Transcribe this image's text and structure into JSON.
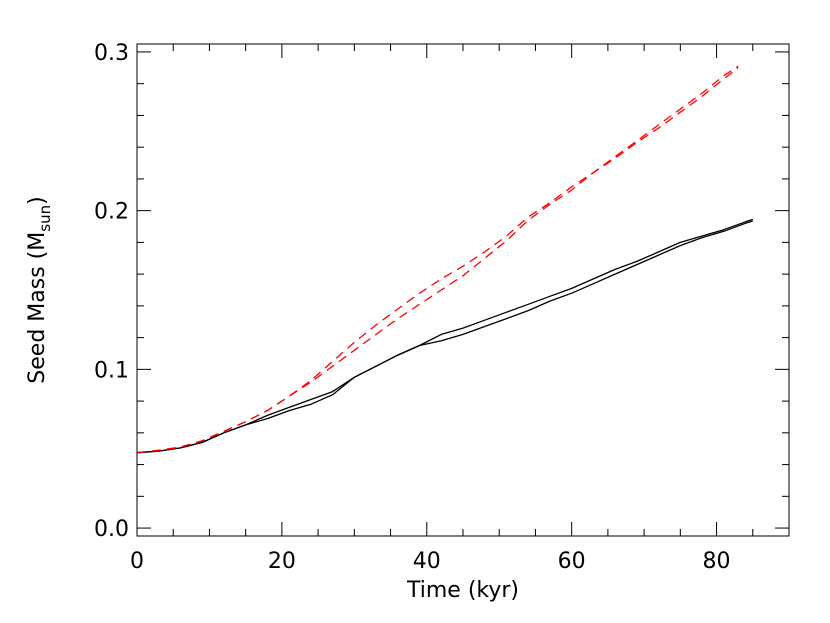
{
  "chart_data": {
    "type": "line",
    "title": "",
    "xlabel": "Time (kyr)",
    "ylabel": {
      "main": "Seed Mass (M",
      "sub": "sun",
      "close": ")"
    },
    "xlim": [
      0,
      90
    ],
    "ylim": [
      -0.005,
      0.305
    ],
    "xticks": [
      0,
      20,
      40,
      60,
      80
    ],
    "xtick_labels": [
      "0",
      "20",
      "40",
      "60",
      "80"
    ],
    "yticks": [
      0.0,
      0.1,
      0.2,
      0.3
    ],
    "ytick_labels": [
      "0.0",
      "0.1",
      "0.2",
      "0.3"
    ],
    "x_minor_step": 5,
    "y_minor_step": 0.02,
    "grid": false,
    "legend": false,
    "series": [
      {
        "color": "#000000",
        "dash": "solid",
        "x": [
          0,
          3,
          6,
          9,
          12,
          15,
          18,
          21,
          24,
          27,
          30,
          33,
          36,
          39,
          42,
          45,
          48,
          51,
          54,
          57,
          60,
          63,
          66,
          69,
          72,
          75,
          78,
          81,
          84,
          85
        ],
        "y": [
          0.0475,
          0.0485,
          0.0505,
          0.054,
          0.06,
          0.065,
          0.071,
          0.076,
          0.081,
          0.086,
          0.095,
          0.102,
          0.109,
          0.115,
          0.122,
          0.126,
          0.131,
          0.136,
          0.141,
          0.146,
          0.151,
          0.157,
          0.163,
          0.168,
          0.174,
          0.18,
          0.184,
          0.188,
          0.193,
          0.1945
        ]
      },
      {
        "color": "#000000",
        "dash": "solid",
        "x": [
          0,
          3,
          6,
          9,
          12,
          15,
          18,
          21,
          24,
          27,
          30,
          33,
          36,
          39,
          42,
          45,
          48,
          51,
          54,
          57,
          60,
          63,
          66,
          69,
          72,
          75,
          78,
          81,
          84,
          85
        ],
        "y": [
          0.0475,
          0.0485,
          0.0505,
          0.054,
          0.06,
          0.065,
          0.069,
          0.074,
          0.078,
          0.084,
          0.095,
          0.102,
          0.109,
          0.115,
          0.118,
          0.122,
          0.127,
          0.132,
          0.137,
          0.143,
          0.148,
          0.154,
          0.16,
          0.166,
          0.172,
          0.178,
          0.183,
          0.187,
          0.192,
          0.1935
        ]
      },
      {
        "color": "#ff0000",
        "dash": "dashed",
        "x": [
          0,
          3,
          6,
          9,
          12,
          15,
          18,
          21,
          24,
          27,
          30,
          33,
          36,
          39,
          42,
          45,
          48,
          51,
          54,
          57,
          60,
          63,
          66,
          69,
          72,
          75,
          78,
          81,
          83
        ],
        "y": [
          0.0475,
          0.049,
          0.051,
          0.055,
          0.061,
          0.067,
          0.074,
          0.083,
          0.092,
          0.102,
          0.112,
          0.122,
          0.132,
          0.141,
          0.15,
          0.159,
          0.17,
          0.181,
          0.194,
          0.204,
          0.213,
          0.224,
          0.233,
          0.243,
          0.252,
          0.262,
          0.272,
          0.283,
          0.29
        ]
      },
      {
        "color": "#ff0000",
        "dash": "dashed",
        "x": [
          0,
          3,
          6,
          9,
          12,
          15,
          18,
          21,
          24,
          27,
          30,
          33,
          36,
          39,
          42,
          45,
          48,
          51,
          54,
          57,
          60,
          63,
          66,
          69,
          72,
          75,
          78,
          81,
          83
        ],
        "y": [
          0.0475,
          0.049,
          0.051,
          0.055,
          0.061,
          0.067,
          0.074,
          0.083,
          0.093,
          0.105,
          0.117,
          0.128,
          0.138,
          0.148,
          0.157,
          0.165,
          0.174,
          0.184,
          0.196,
          0.205,
          0.215,
          0.224,
          0.234,
          0.244,
          0.254,
          0.264,
          0.274,
          0.285,
          0.291
        ]
      }
    ]
  }
}
